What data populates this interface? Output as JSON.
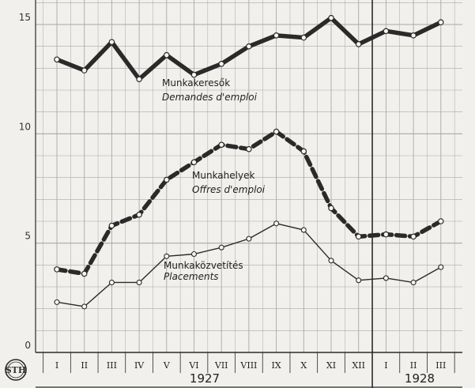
{
  "chart_data": {
    "type": "line",
    "categories": [
      "I",
      "II",
      "III",
      "IV",
      "V",
      "VI",
      "VII",
      "VIII",
      "IX",
      "X",
      "XI",
      "XII",
      "I",
      "II",
      "III"
    ],
    "year_labels": [
      {
        "label": "1927",
        "from": 0,
        "to": 11
      },
      {
        "label": "1928",
        "from": 12,
        "to": 14
      }
    ],
    "ylim": [
      0,
      16
    ],
    "yticks": [
      {
        "value": 0,
        "label": "0"
      },
      {
        "value": 5,
        "label": "5"
      },
      {
        "value": 10,
        "label": "10"
      },
      {
        "value": 15,
        "label": "15"
      }
    ],
    "grid": true,
    "series": [
      {
        "name": "Munkakeresők",
        "name_fr": "Demandes d'emploi",
        "style": "heavy-solid",
        "values": [
          13.4,
          12.9,
          14.2,
          12.5,
          13.6,
          12.7,
          13.2,
          14.0,
          14.5,
          14.4,
          15.3,
          14.1,
          14.7,
          14.5,
          15.1
        ]
      },
      {
        "name": "Munkahelyek",
        "name_fr": "Offres d'emploi",
        "style": "heavy-dashed",
        "values": [
          3.8,
          3.6,
          5.8,
          6.3,
          7.9,
          8.7,
          9.5,
          9.3,
          10.1,
          9.2,
          6.6,
          5.3,
          5.4,
          5.3,
          6.0
        ]
      },
      {
        "name": "Munkaközvetítés",
        "name_fr": "Placements",
        "style": "thin-solid",
        "values": [
          2.3,
          2.1,
          3.2,
          3.2,
          4.4,
          4.5,
          4.8,
          5.2,
          5.9,
          5.6,
          4.2,
          3.3,
          3.4,
          3.2,
          3.9
        ]
      }
    ]
  },
  "logo_text": "STH",
  "colors": {
    "background": "#f1f0ec",
    "grid": "#a8a8a8",
    "ink": "#2a2a2a"
  }
}
